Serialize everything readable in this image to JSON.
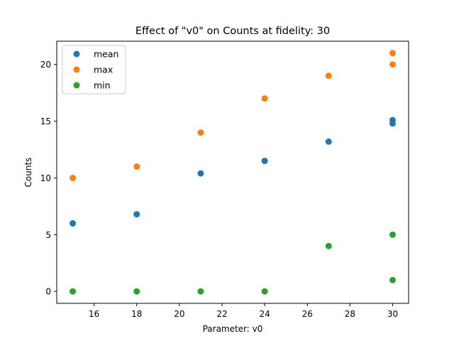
{
  "chart_data": {
    "type": "scatter",
    "title": "Effect of \"v0\" on Counts at fidelity: 30",
    "xlabel": "Parameter: v0",
    "ylabel": "Counts",
    "xlim": [
      14.25,
      30.75
    ],
    "ylim": [
      -1.05,
      22.05
    ],
    "xticks": [
      16,
      18,
      20,
      22,
      24,
      26,
      28,
      30
    ],
    "yticks": [
      0,
      5,
      10,
      15,
      20
    ],
    "grid": false,
    "legend": "upper-left",
    "series": [
      {
        "name": "mean",
        "color": "#1f77b4",
        "points": [
          [
            15,
            6.0
          ],
          [
            18,
            6.8
          ],
          [
            21,
            10.4
          ],
          [
            24,
            11.5
          ],
          [
            27,
            13.2
          ],
          [
            30,
            14.8
          ],
          [
            30,
            15.1
          ]
        ]
      },
      {
        "name": "max",
        "color": "#ff7f0e",
        "points": [
          [
            15,
            10
          ],
          [
            18,
            11
          ],
          [
            21,
            14
          ],
          [
            24,
            17
          ],
          [
            27,
            19
          ],
          [
            30,
            20
          ],
          [
            30,
            21
          ]
        ]
      },
      {
        "name": "min",
        "color": "#2ca02c",
        "points": [
          [
            15,
            0
          ],
          [
            18,
            0
          ],
          [
            21,
            0
          ],
          [
            24,
            0
          ],
          [
            27,
            4
          ],
          [
            30,
            1
          ],
          [
            30,
            5
          ]
        ]
      }
    ]
  }
}
